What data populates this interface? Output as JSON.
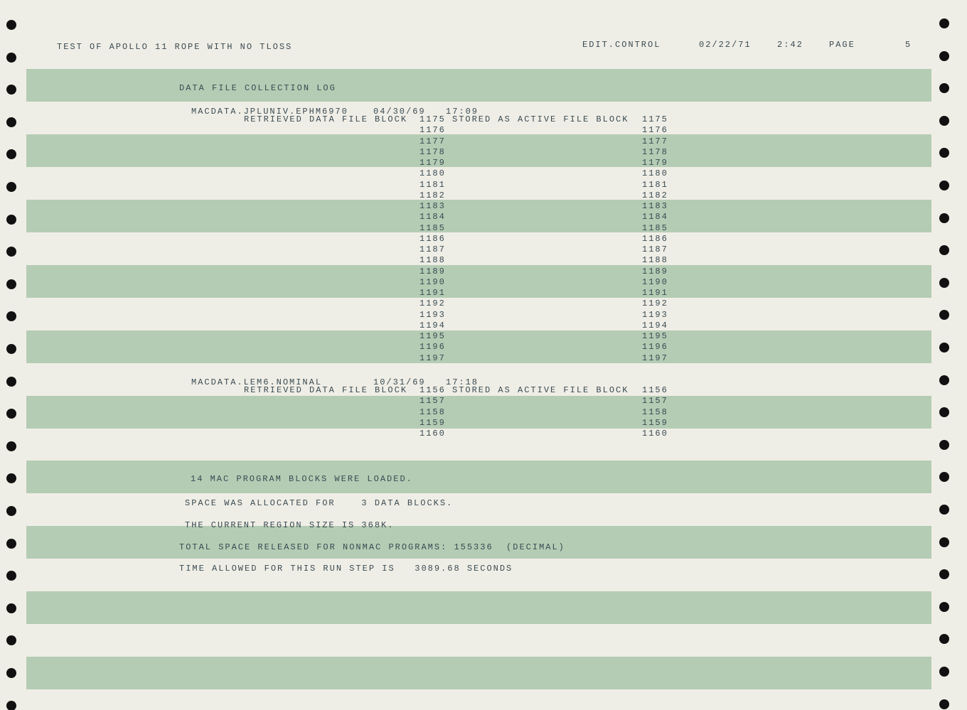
{
  "header": {
    "title": "TEST OF APOLLO 11 ROPE WITH NO TLOSS",
    "program": "EDIT.CONTROL",
    "date": "02/22/71",
    "time": "2:42",
    "page_label": "PAGE",
    "page": "5"
  },
  "log": {
    "title": "DATA FILE COLLECTION LOG",
    "entries": [
      {
        "dataset": "MACDATA.JPLUNIV.EPHM6970",
        "date": "04/30/69",
        "time": "17:09",
        "retrieved_label": "RETRIEVED DATA FILE BLOCK",
        "stored_label": "STORED AS ACTIVE FILE BLOCK",
        "blocks": [
          [
            1175,
            1175
          ],
          [
            1176,
            1176
          ],
          [
            1177,
            1177
          ],
          [
            1178,
            1178
          ],
          [
            1179,
            1179
          ],
          [
            1180,
            1180
          ],
          [
            1181,
            1181
          ],
          [
            1182,
            1182
          ],
          [
            1183,
            1183
          ],
          [
            1184,
            1184
          ],
          [
            1185,
            1185
          ],
          [
            1186,
            1186
          ],
          [
            1187,
            1187
          ],
          [
            1188,
            1188
          ],
          [
            1189,
            1189
          ],
          [
            1190,
            1190
          ],
          [
            1191,
            1191
          ],
          [
            1192,
            1192
          ],
          [
            1193,
            1193
          ],
          [
            1194,
            1194
          ],
          [
            1195,
            1195
          ],
          [
            1196,
            1196
          ],
          [
            1197,
            1197
          ]
        ]
      },
      {
        "dataset": "MACDATA.LEM6.NOMINAL",
        "date": "10/31/69",
        "time": "17:18",
        "retrieved_label": "RETRIEVED DATA FILE BLOCK",
        "stored_label": "STORED AS ACTIVE FILE BLOCK",
        "blocks": [
          [
            1156,
            1156
          ],
          [
            1157,
            1157
          ],
          [
            1158,
            1158
          ],
          [
            1159,
            1159
          ],
          [
            1160,
            1160
          ]
        ]
      }
    ]
  },
  "summary": [
    "14 MAC PROGRAM BLOCKS WERE LOADED.",
    "SPACE WAS ALLOCATED FOR    3 DATA BLOCKS.",
    "THE CURRENT REGION SIZE IS 368K.",
    "TOTAL SPACE RELEASED FOR NONMAC PROGRAMS: 155336  (DECIMAL)",
    "TIME ALLOWED FOR THIS RUN STEP IS   3089.68 SECONDS"
  ]
}
